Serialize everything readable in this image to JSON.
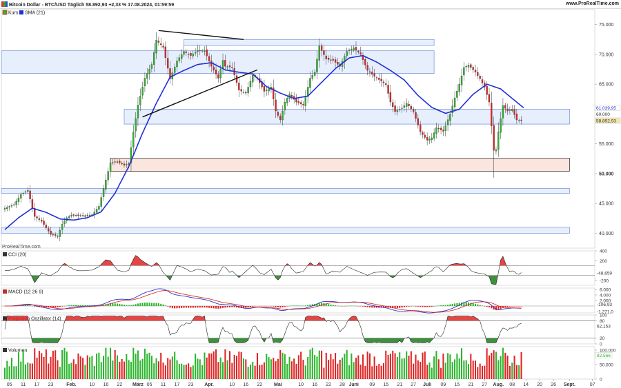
{
  "header": {
    "title": "Bitcoin Dollar - BTC/USD Täglich 58.892,93 +2,33 % 17.08.2024, 01:59:59",
    "url": "www.ProRealTime.com"
  },
  "colors": {
    "up": "#2cb52c",
    "down": "#e02424",
    "sma": "#1f2fd6",
    "zone_blue": "#e4ecfc",
    "zone_blue_border": "#6f8fd8",
    "zone_red": "#fbe2dc",
    "zone_red_border": "#222222",
    "cci_fill_up": "#e02424",
    "cci_fill_down": "#1e7a1e",
    "macd": "#3030c0",
    "signal": "#d03030"
  },
  "legend": {
    "price": "Kurs",
    "sma": "SMA (21)"
  },
  "watermark": "ProRealTime.com",
  "chart_data": [
    {
      "type": "candlestick",
      "panel": "price",
      "ylim": [
        37500,
        77500
      ],
      "y_ticks": [
        "75.000",
        "70.000",
        "65.000",
        "60.000",
        "55.000",
        "50.000",
        "45.000",
        "40.000"
      ],
      "y_tick_values": [
        75000,
        70000,
        65000,
        60000,
        55000,
        50000,
        45000,
        40000
      ],
      "price_tags": [
        {
          "label": "61.039,95",
          "value": 61039.95
        },
        {
          "label": "60.000",
          "value": 60000
        },
        {
          "label": "58.892,93",
          "value": 58892.93
        }
      ],
      "x_tick_labels": [
        "05",
        "11",
        "17",
        "23",
        "Feb.",
        "10",
        "16",
        "22",
        "März",
        "05",
        "11",
        "17",
        "23",
        "Apr.",
        "10",
        "16",
        "22",
        "Mai",
        "10",
        "16",
        "22",
        "28",
        "Juni",
        "09",
        "15",
        "21",
        "27",
        "Juli",
        "09",
        "15",
        "21",
        "27",
        "Aug.",
        "08",
        "14",
        "20",
        "26",
        "Sept.",
        "07"
      ],
      "x_tick_days": [
        -4,
        2,
        8,
        14,
        23,
        32,
        38,
        44,
        52,
        57,
        63,
        69,
        75,
        83,
        93,
        99,
        105,
        113,
        123,
        129,
        135,
        141,
        146,
        154,
        160,
        166,
        172,
        178,
        185,
        191,
        197,
        203,
        209,
        215,
        221,
        227,
        233,
        240,
        250
      ],
      "x_range_days": [
        -7.5,
        251
      ],
      "close_keypoints": [
        [
          -6,
          44200
        ],
        [
          -2,
          44800
        ],
        [
          1,
          46500
        ],
        [
          4,
          47200
        ],
        [
          7,
          42800
        ],
        [
          10,
          42000
        ],
        [
          14,
          39800
        ],
        [
          17,
          39500
        ],
        [
          19,
          41500
        ],
        [
          21,
          42600
        ],
        [
          23,
          43000
        ],
        [
          28,
          42900
        ],
        [
          32,
          43100
        ],
        [
          35,
          44500
        ],
        [
          37,
          47500
        ],
        [
          40,
          51800
        ],
        [
          43,
          52000
        ],
        [
          46,
          51400
        ],
        [
          48,
          51700
        ],
        [
          50,
          57000
        ],
        [
          52,
          61500
        ],
        [
          55,
          66000
        ],
        [
          58,
          68300
        ],
        [
          60,
          72400
        ],
        [
          63,
          71200
        ],
        [
          66,
          65900
        ],
        [
          69,
          68900
        ],
        [
          72,
          70500
        ],
        [
          75,
          69800
        ],
        [
          78,
          70700
        ],
        [
          81,
          70600
        ],
        [
          84,
          68000
        ],
        [
          87,
          66000
        ],
        [
          89,
          69000
        ],
        [
          90,
          68000
        ],
        [
          93,
          67800
        ],
        [
          96,
          64000
        ],
        [
          99,
          63500
        ],
        [
          102,
          66500
        ],
        [
          104,
          66000
        ],
        [
          107,
          63800
        ],
        [
          110,
          64500
        ],
        [
          112,
          60500
        ],
        [
          114,
          59000
        ],
        [
          116,
          62000
        ],
        [
          118,
          63300
        ],
        [
          121,
          62000
        ],
        [
          124,
          61500
        ],
        [
          127,
          66000
        ],
        [
          129,
          67000
        ],
        [
          131,
          71400
        ],
        [
          134,
          69200
        ],
        [
          137,
          69000
        ],
        [
          140,
          68000
        ],
        [
          143,
          70500
        ],
        [
          146,
          71100
        ],
        [
          149,
          70000
        ],
        [
          152,
          67300
        ],
        [
          155,
          66300
        ],
        [
          158,
          65500
        ],
        [
          160,
          64900
        ],
        [
          162,
          62000
        ],
        [
          164,
          60400
        ],
        [
          167,
          61000
        ],
        [
          169,
          61800
        ],
        [
          172,
          60400
        ],
        [
          175,
          57000
        ],
        [
          178,
          55600
        ],
        [
          180,
          56000
        ],
        [
          182,
          57700
        ],
        [
          185,
          57100
        ],
        [
          188,
          60000
        ],
        [
          190,
          62700
        ],
        [
          192,
          65000
        ],
        [
          194,
          67800
        ],
        [
          196,
          68200
        ],
        [
          199,
          67000
        ],
        [
          201,
          65900
        ],
        [
          203,
          64500
        ],
        [
          205,
          62000
        ],
        [
          206,
          58000
        ],
        [
          207,
          53900
        ],
        [
          208,
          54000
        ],
        [
          209,
          57000
        ],
        [
          211,
          61400
        ],
        [
          213,
          60500
        ],
        [
          215,
          60800
        ],
        [
          217,
          59000
        ],
        [
          219,
          58900
        ]
      ],
      "sma_keypoints": [
        [
          -6,
          40600
        ],
        [
          0,
          42600
        ],
        [
          6,
          44200
        ],
        [
          12,
          43500
        ],
        [
          18,
          42400
        ],
        [
          24,
          42200
        ],
        [
          30,
          42600
        ],
        [
          36,
          43600
        ],
        [
          42,
          46700
        ],
        [
          48,
          51200
        ],
        [
          54,
          56800
        ],
        [
          60,
          61800
        ],
        [
          66,
          66200
        ],
        [
          72,
          67300
        ],
        [
          78,
          68300
        ],
        [
          84,
          68600
        ],
        [
          90,
          67400
        ],
        [
          96,
          67000
        ],
        [
          102,
          66700
        ],
        [
          108,
          64600
        ],
        [
          114,
          63500
        ],
        [
          120,
          62600
        ],
        [
          126,
          63000
        ],
        [
          132,
          65300
        ],
        [
          138,
          67600
        ],
        [
          144,
          69400
        ],
        [
          150,
          69800
        ],
        [
          156,
          68700
        ],
        [
          162,
          67300
        ],
        [
          168,
          65700
        ],
        [
          174,
          63100
        ],
        [
          180,
          61100
        ],
        [
          186,
          60100
        ],
        [
          192,
          60800
        ],
        [
          198,
          63300
        ],
        [
          204,
          65000
        ],
        [
          210,
          64200
        ],
        [
          216,
          62300
        ],
        [
          220,
          61040
        ]
      ],
      "zones": [
        {
          "kind": "resistance",
          "from_day": 72,
          "to_day": 181,
          "y1": 71500,
          "y2": 72500
        },
        {
          "kind": "resistance",
          "from_day": -7.5,
          "to_day": 181,
          "y1": 66800,
          "y2": 70600
        },
        {
          "kind": "resistance",
          "from_day": 46,
          "to_day": 240,
          "y1": 58300,
          "y2": 60800
        },
        {
          "kind": "support",
          "from_day": 40,
          "to_day": 240,
          "y1": 50400,
          "y2": 52600
        },
        {
          "kind": "resistance",
          "from_day": -7.5,
          "to_day": 240,
          "y1": 46700,
          "y2": 47500
        },
        {
          "kind": "resistance",
          "from_day": -7.5,
          "to_day": 240,
          "y1": 40000,
          "y2": 41000
        }
      ],
      "trendlines": [
        {
          "from": [
            61,
            74000
          ],
          "to": [
            98,
            72500
          ]
        },
        {
          "from": [
            54,
            59500
          ],
          "to": [
            104,
            67400
          ]
        }
      ]
    },
    {
      "type": "line",
      "panel": "oscillator",
      "title": "CCI (20)",
      "ylim": [
        -300,
        400
      ],
      "y_ticks": [
        "400",
        "200",
        "-200"
      ],
      "y_tick_values": [
        400,
        200,
        -200
      ],
      "levels": [
        100,
        -100
      ],
      "last_value_label": "-48,659",
      "last_value": -48.659
    },
    {
      "type": "line",
      "panel": "oscillator",
      "title": "MACD (12 26 9)",
      "ylim": [
        -2500,
        6500
      ],
      "y_ticks": [
        "6.000",
        "4.000",
        "2.000"
      ],
      "y_tick_values": [
        6000,
        4000,
        2000
      ],
      "last_value_labels": [
        "-106,93",
        "-1.271,0"
      ],
      "last_values": [
        -106.93,
        -1271.0
      ]
    },
    {
      "type": "line",
      "panel": "oscillator",
      "title": "Projection Oszillator (14)",
      "ylim": [
        0,
        100
      ],
      "y_ticks": [
        "100",
        "80",
        "20",
        "0"
      ],
      "y_tick_values": [
        100,
        80,
        20,
        0
      ],
      "levels": [
        80,
        20
      ],
      "last_value_label": "62,153",
      "last_value": 62.153
    },
    {
      "type": "bar",
      "panel": "volume",
      "title": "Volumen",
      "ylim": [
        0,
        112000
      ],
      "y_ticks": [
        "100.000",
        "50.000",
        "0"
      ],
      "y_tick_values": [
        100000,
        50000,
        0
      ],
      "last_value_label": "82.566",
      "last_value": 82566
    }
  ]
}
